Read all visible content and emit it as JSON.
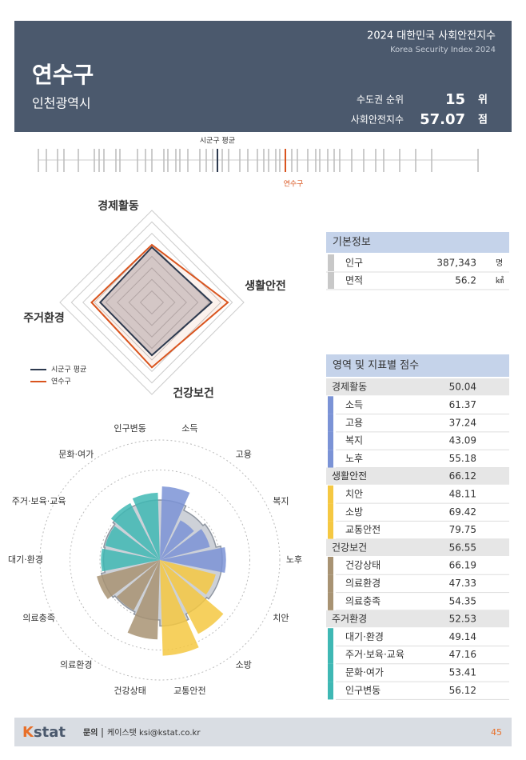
{
  "header": {
    "title_ko": "2024 대한민국 사회안전지수",
    "title_en": "Korea Security Index 2024",
    "district": "연수구",
    "city": "인천광역시",
    "rank_label": "수도권 순위",
    "rank": 15,
    "rank_unit": "위",
    "score_label": "사회안전지수",
    "score": 57.07,
    "score_unit": "점"
  },
  "strip": {
    "average_label": "시군구 평균"
  },
  "radar": {
    "rlim": [
      0,
      80
    ],
    "average": {
      "name": "시군구 평균",
      "color": "#2d3a4f",
      "values": [
        48,
        52,
        46,
        45
      ]
    },
    "district_color": "#d9541e"
  },
  "basic_info": {
    "title": "기본정보",
    "rows": [
      [
        "인구",
        "387,343",
        "명"
      ],
      [
        "면적",
        56.2,
        "㎢"
      ]
    ]
  },
  "scores": {
    "title": "영역 및 지표별 점수",
    "groups": [
      {
        "name": "경제활동",
        "score": 50.04,
        "color": "#7b93d6",
        "items": [
          [
            "소득",
            61.37
          ],
          [
            "고용",
            37.24
          ],
          [
            "복지",
            43.09
          ],
          [
            "노후",
            55.18
          ]
        ]
      },
      {
        "name": "생활안전",
        "score": 66.12,
        "color": "#f5c842",
        "items": [
          [
            "치안",
            48.11
          ],
          [
            "소방",
            69.42
          ],
          [
            "교통안전",
            79.75
          ]
        ]
      },
      {
        "name": "건강보건",
        "score": 56.55,
        "color": "#a89373",
        "items": [
          [
            "건강상태",
            66.19
          ],
          [
            "의료환경",
            47.33
          ],
          [
            "의료충족",
            54.35
          ]
        ]
      },
      {
        "name": "주거환경",
        "score": 52.53,
        "color": "#3fb8b4",
        "items": [
          [
            "대기·환경",
            49.14
          ],
          [
            "주거·보육·교육",
            47.16
          ],
          [
            "문화·여가",
            53.41
          ],
          [
            "인구변동",
            56.12
          ]
        ]
      }
    ]
  },
  "polar": {
    "rlim": [
      0,
      100
    ],
    "average": [
      50,
      46,
      48,
      52,
      52,
      50,
      55,
      50,
      48,
      50,
      47,
      48,
      50,
      50
    ]
  },
  "footer": {
    "logo": [
      "K",
      "stat"
    ],
    "contact_label": "문의",
    "contact": "케이스탯 ksi@kstat.co.kr",
    "page": "45"
  }
}
